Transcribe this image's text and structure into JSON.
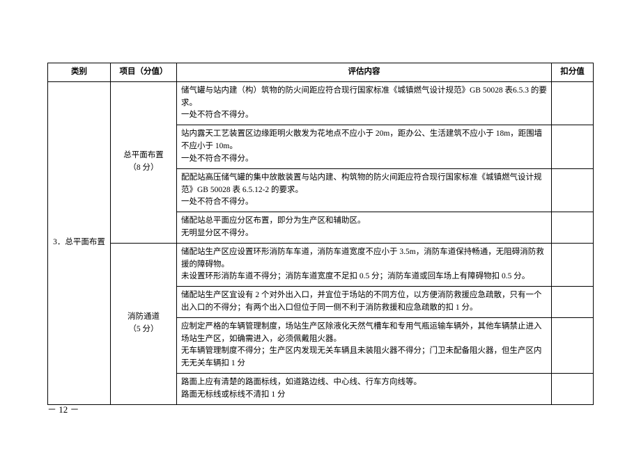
{
  "headers": {
    "category": "类别",
    "item": "项目（分值）",
    "content": "评估内容",
    "deduct": "扣分值"
  },
  "category": "3．总平面布置",
  "item1": {
    "name": "总平面布置",
    "score": "（8 分）"
  },
  "item2": {
    "name": "消防通道",
    "score": "（5 分）"
  },
  "rows": {
    "r1": "储气罐与站内建（构）筑物的防火间距应符合现行国家标准《城镇燃气设计规范》GB 50028 表6.5.3 的要求。\n一处不符合不得分。",
    "r2": "站内露天工艺装置区边缘距明火散发为花地点不应小于 20m，距办公、生活建筑不应小于 18m，距围墙不应小于 10m。\n一处不符合不得分。",
    "r3": "配配站高压储气罐的集中放散装置与站内建、构筑物的防火间距应符合现行国家标准《城镇燃气设计规范》GB 50028 表 6.5.12-2 的要求。\n一处不符合不得分。",
    "r4": "储配站总平面应分区布置，即分为生产区和辅助区。\n无明显分区不得分。",
    "r5": "储配站生产区应设置环形消防车车道，消防车道宽度不应小于 3.5m，消防车道保持畅通，无阻碍消防救援的障碍物。\n未设置环形消防车道不得分；消防车道宽度不足扣 0.5 分；消防车道或回车场上有障碍物扣 0.5 分。",
    "r6": "储配站生产区宜设有 2 个对外出入口，并宜位于场站的不同方位，以方便消防救援应急疏散，只有一个出入口的不得分；有两个出入口但位于同一侧不利于消防救援和应急疏散的扣  1 分。",
    "r7": "应制定严格的车辆管理制度，场站生产区除液化天然气槽车和专用气瓶运输车辆外，其他车辆禁止进入场站生产区，如确需进入，必须佩戴阻火器。\n无车辆管理制度不得分；生产区内发现无关车辆且未装阻火器不得分；门卫未配备阻火器，但生产区内无无关车辆扣  1  分",
    "r8": "路面上应有清楚的路面标线，如道路边线、中心线、行车方向线等。\n路面无标线或标线不清扣  1  分"
  },
  "pageNumber": "－ 12 －"
}
